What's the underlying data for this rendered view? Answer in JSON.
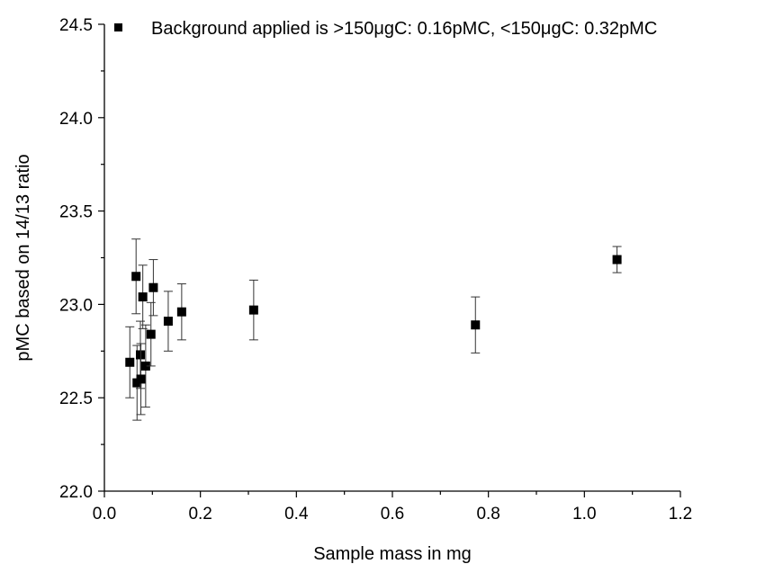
{
  "chart_data": {
    "type": "scatter",
    "xlabel": "Sample mass in mg",
    "ylabel": "pMC based on 14/13 ratio",
    "xlim": [
      0.0,
      1.2
    ],
    "ylim": [
      22.0,
      24.5
    ],
    "x_ticks": [
      "0.0",
      "0.2",
      "0.4",
      "0.6",
      "0.8",
      "1.0",
      "1.2"
    ],
    "y_ticks": [
      "22.0",
      "22.5",
      "23.0",
      "23.5",
      "24.0",
      "24.5"
    ],
    "grid": false,
    "legend_position": "top-right",
    "marker": "square",
    "color": "#000000",
    "series": [
      {
        "name": "Background applied is >150μgC: 0.16pMC, <150μgC: 0.32pMC",
        "points": [
          {
            "x": 0.053,
            "y": 22.69,
            "err": 0.19
          },
          {
            "x": 0.066,
            "y": 23.15,
            "err": 0.2
          },
          {
            "x": 0.068,
            "y": 22.58,
            "err": 0.2
          },
          {
            "x": 0.075,
            "y": 22.73,
            "err": 0.18
          },
          {
            "x": 0.076,
            "y": 22.6,
            "err": 0.19
          },
          {
            "x": 0.08,
            "y": 23.04,
            "err": 0.17
          },
          {
            "x": 0.086,
            "y": 22.67,
            "err": 0.22
          },
          {
            "x": 0.097,
            "y": 22.84,
            "err": 0.17
          },
          {
            "x": 0.102,
            "y": 23.09,
            "err": 0.15
          },
          {
            "x": 0.133,
            "y": 22.91,
            "err": 0.16
          },
          {
            "x": 0.161,
            "y": 22.96,
            "err": 0.15
          },
          {
            "x": 0.311,
            "y": 22.97,
            "err": 0.16
          },
          {
            "x": 0.773,
            "y": 22.89,
            "err": 0.15
          },
          {
            "x": 1.068,
            "y": 23.24,
            "err": 0.07
          }
        ]
      }
    ]
  }
}
